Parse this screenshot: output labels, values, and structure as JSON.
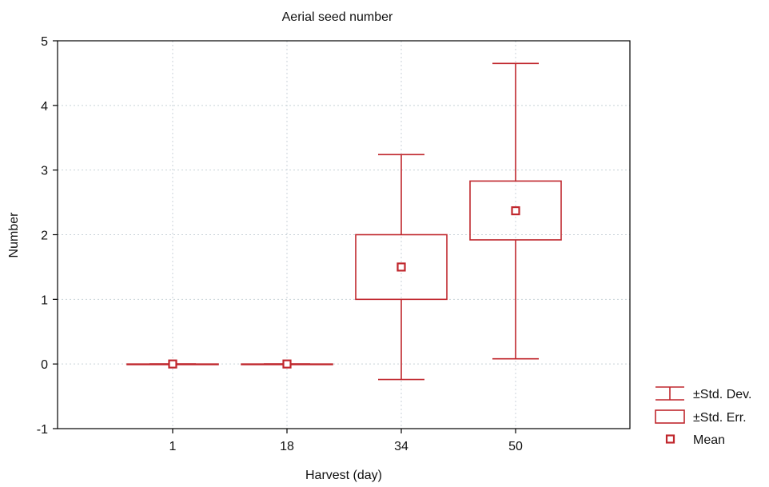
{
  "chart_data": {
    "type": "box",
    "title": "Aerial seed number",
    "xlabel": "Harvest (day)",
    "ylabel": "Number",
    "categories": [
      "1",
      "18",
      "34",
      "50"
    ],
    "series": [
      {
        "mean": [
          0,
          0,
          1.5,
          2.37
        ],
        "se_low": [
          0,
          0,
          1.0,
          1.92
        ],
        "se_high": [
          0,
          0,
          2.0,
          2.83
        ],
        "sd_low": [
          0,
          0,
          -0.24,
          0.08
        ],
        "sd_high": [
          0,
          0,
          3.24,
          4.65
        ]
      }
    ],
    "ylim": [
      -1,
      5
    ],
    "yticks": [
      "-1",
      "0",
      "1",
      "2",
      "3",
      "4",
      "5"
    ],
    "grid": true,
    "legend": {
      "placement": "bottom-right",
      "items": [
        {
          "key": "whisker",
          "label": "±Std. Dev."
        },
        {
          "key": "box",
          "label": "±Std. Err."
        },
        {
          "key": "mean",
          "label": "Mean"
        }
      ]
    },
    "colors": {
      "series": "#c0272d",
      "axis": "#000000",
      "grid": "#c8d2d8"
    }
  }
}
